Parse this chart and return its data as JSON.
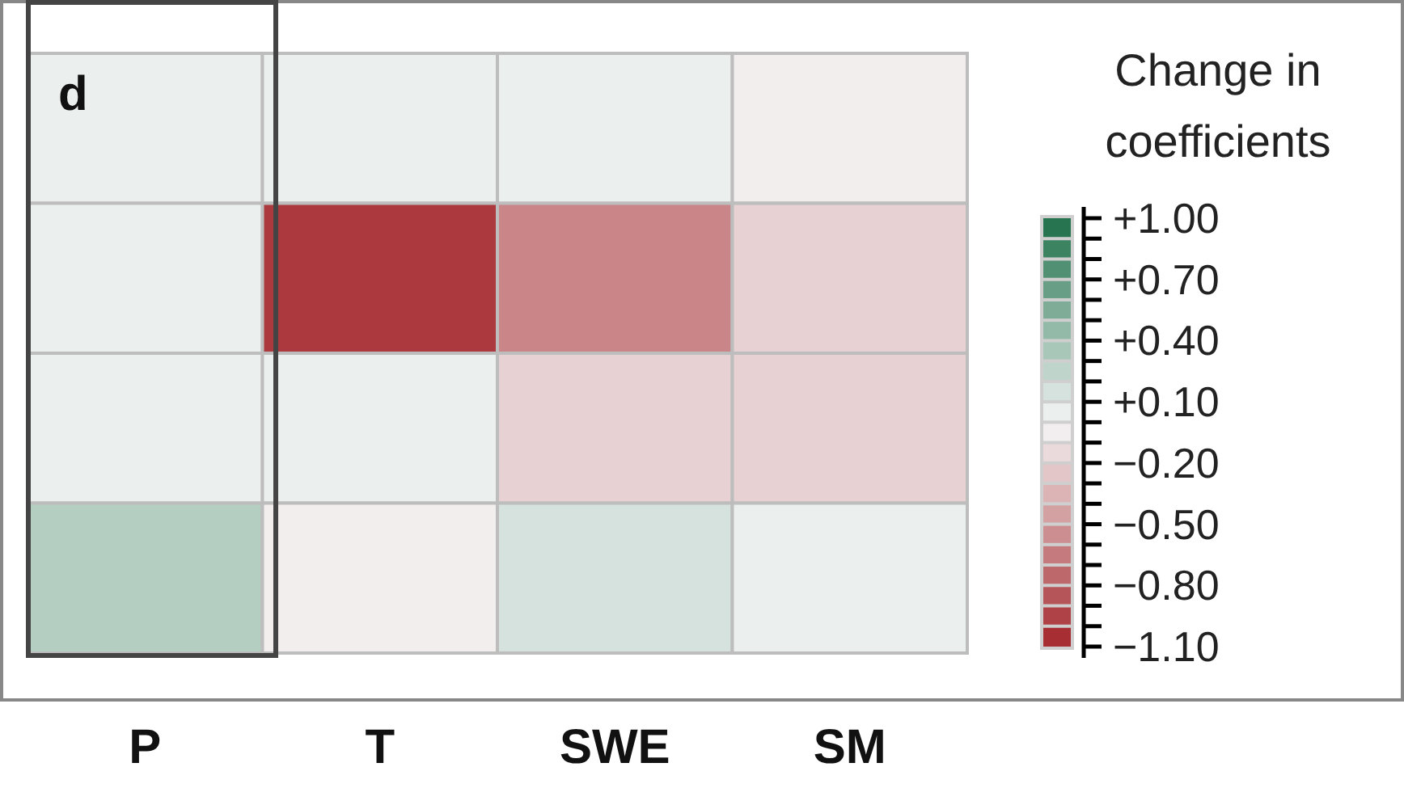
{
  "chart_data": {
    "type": "heatmap",
    "clabel": "Change in coefficients",
    "annotations": [
      "d"
    ],
    "categories": [
      "P",
      "T",
      "SWE",
      "SM"
    ],
    "y_categories": [
      null,
      null,
      null,
      null
    ],
    "cells": [
      [
        0.05,
        0.05,
        0.05,
        -0.05
      ],
      [
        0.05,
        -1.0,
        -0.6,
        -0.2
      ],
      [
        0.05,
        0.05,
        -0.2,
        -0.2
      ],
      [
        0.3,
        -0.05,
        0.15,
        0.05
      ]
    ],
    "clim": [
      -1.1,
      1.0
    ],
    "cticks": [
      {
        "value": 1.0,
        "label": "+1.00"
      },
      {
        "value": 0.7,
        "label": "+0.70"
      },
      {
        "value": 0.4,
        "label": "+0.40"
      },
      {
        "value": 0.1,
        "label": "+0.10"
      },
      {
        "value": -0.2,
        "label": "−0.20"
      },
      {
        "value": -0.5,
        "label": "−0.50"
      },
      {
        "value": -0.8,
        "label": "−0.80"
      },
      {
        "value": -1.1,
        "label": "−1.10"
      }
    ]
  }
}
